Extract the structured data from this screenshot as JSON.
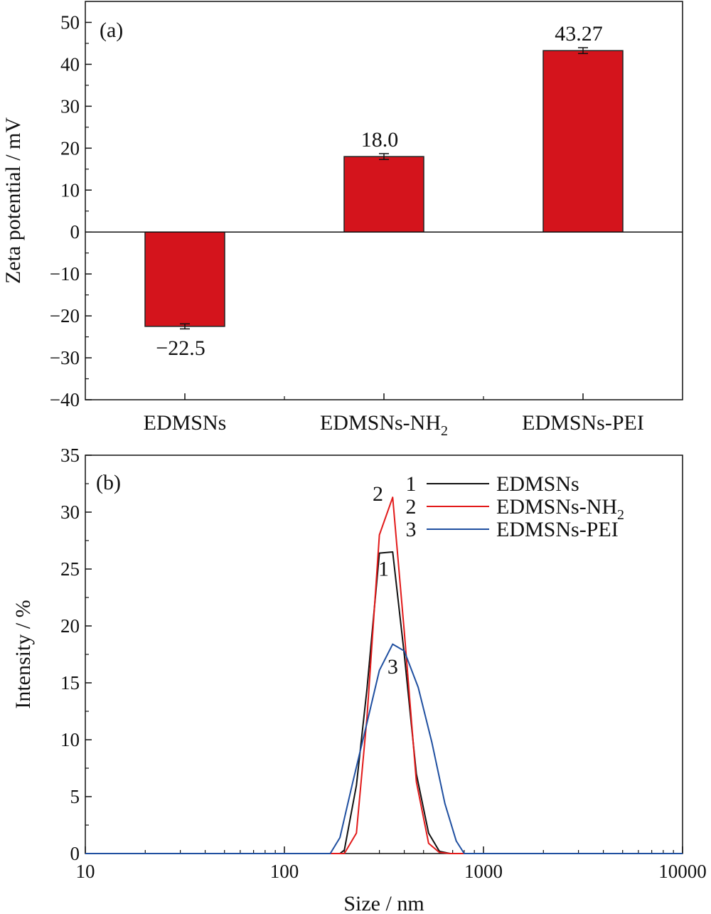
{
  "chart_data": [
    {
      "panel_label": "(a)",
      "type": "bar",
      "ylabel": "Zeta potential / mV",
      "ylim": [
        -40,
        55
      ],
      "yticks": [
        "50",
        "40",
        "30",
        "20",
        "10",
        "0",
        "−10",
        "−20",
        "−30",
        "−40"
      ],
      "ytick_values": [
        50,
        40,
        30,
        20,
        10,
        0,
        -10,
        -20,
        -30,
        -40
      ],
      "categories": [
        {
          "base": "EDMSNs",
          "sub": ""
        },
        {
          "base": "EDMSNs-NH",
          "sub": "2"
        },
        {
          "base": "EDMSNs-PEI",
          "sub": ""
        }
      ],
      "values": [
        -22.5,
        18.0,
        43.27
      ],
      "errors": [
        0.6,
        0.7,
        0.7
      ],
      "data_labels": [
        "−22.5",
        "18.0",
        "43.27"
      ],
      "bar_color": "#d4141c"
    },
    {
      "panel_label": "(b)",
      "type": "line",
      "xscale": "log",
      "xlabel": "Size / nm",
      "ylabel": "Intensity / %",
      "xlim": [
        10,
        10000
      ],
      "ylim": [
        0,
        35
      ],
      "xticks": [
        "10",
        "100",
        "1000",
        "10000"
      ],
      "xtick_values": [
        10,
        100,
        1000,
        10000
      ],
      "yticks": [
        "35",
        "30",
        "25",
        "20",
        "15",
        "10",
        "5",
        "0"
      ],
      "ytick_values": [
        35,
        30,
        25,
        20,
        15,
        10,
        5,
        0
      ],
      "legend": [
        {
          "num": "1",
          "base": "EDMSNs",
          "sub": ""
        },
        {
          "num": "2",
          "base": "EDMSNs-NH",
          "sub": "2"
        },
        {
          "num": "3",
          "base": "EDMSNs-PEI",
          "sub": ""
        }
      ],
      "curve_labels": [
        {
          "text": "1",
          "x": 315,
          "y": 24.4
        },
        {
          "text": "2",
          "x": 295,
          "y": 31.0
        },
        {
          "text": "3",
          "x": 350,
          "y": 15.8
        }
      ],
      "series": [
        {
          "color": "#111111",
          "x": [
            10,
            190,
            200,
            230,
            260,
            300,
            350,
            400,
            460,
            530,
            600,
            680,
            10000
          ],
          "y": [
            0,
            0,
            0.3,
            6.0,
            14.5,
            26.4,
            26.5,
            17.5,
            7.0,
            1.8,
            0.2,
            0,
            0
          ]
        },
        {
          "color": "#e21a1a",
          "x": [
            10,
            200,
            230,
            260,
            300,
            350,
            400,
            460,
            530,
            600,
            680,
            10000
          ],
          "y": [
            0,
            0,
            1.8,
            12.0,
            28.0,
            31.3,
            19.5,
            6.3,
            0.9,
            0.1,
            0,
            0
          ]
        },
        {
          "color": "#1f4fa0",
          "x": [
            10,
            170,
            190,
            220,
            260,
            300,
            350,
            400,
            470,
            550,
            640,
            730,
            800,
            10000
          ],
          "y": [
            0,
            0,
            1.4,
            6.2,
            11.5,
            16.1,
            18.4,
            17.8,
            14.6,
            9.8,
            4.4,
            1.1,
            0,
            0
          ]
        }
      ]
    }
  ]
}
